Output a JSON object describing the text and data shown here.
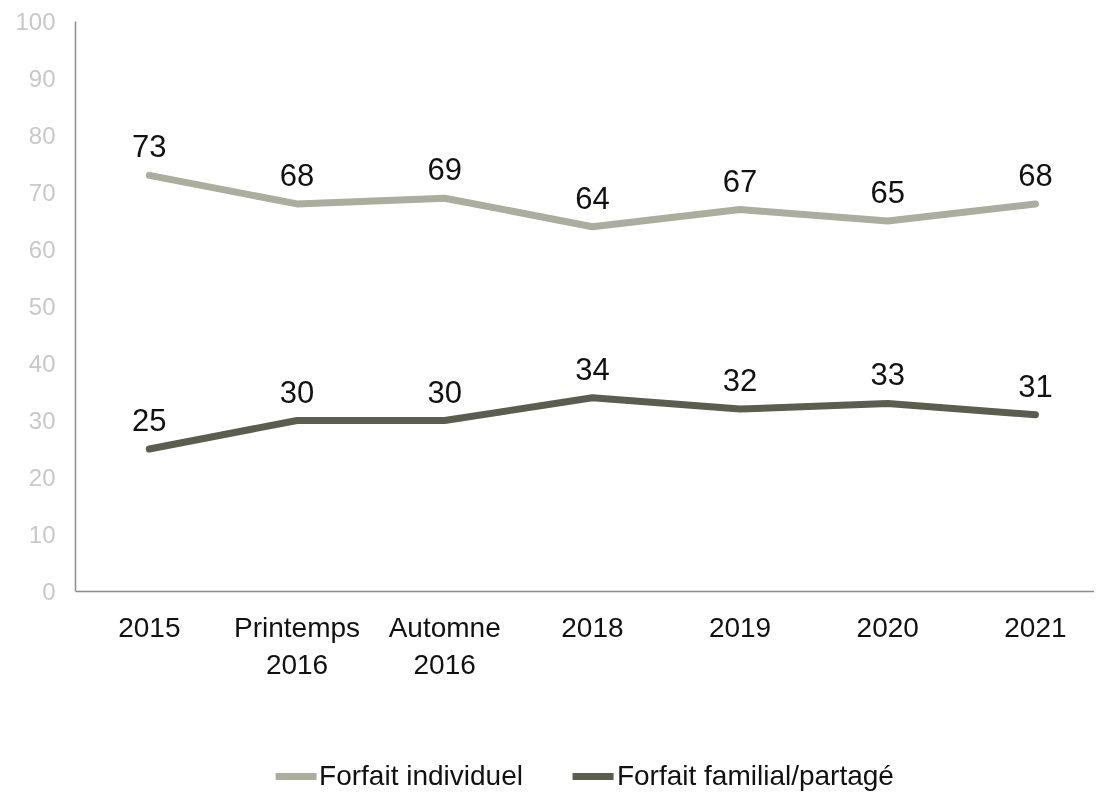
{
  "chart_data": {
    "type": "line",
    "categories": [
      "2015",
      "Printemps 2016",
      "Automne 2016",
      "2018",
      "2019",
      "2020",
      "2021"
    ],
    "series": [
      {
        "name": "Forfait individuel",
        "color": "#abad9e",
        "values": [
          73,
          68,
          69,
          64,
          67,
          65,
          68
        ]
      },
      {
        "name": "Forfait familial/partagé",
        "color": "#5b5d4f",
        "values": [
          25,
          30,
          30,
          34,
          32,
          33,
          31
        ]
      }
    ],
    "ylim": [
      0,
      100
    ],
    "yticks": [
      0,
      10,
      20,
      30,
      40,
      50,
      60,
      70,
      80,
      90,
      100
    ],
    "grid": false,
    "legend": "bottom",
    "data_labels": true
  }
}
